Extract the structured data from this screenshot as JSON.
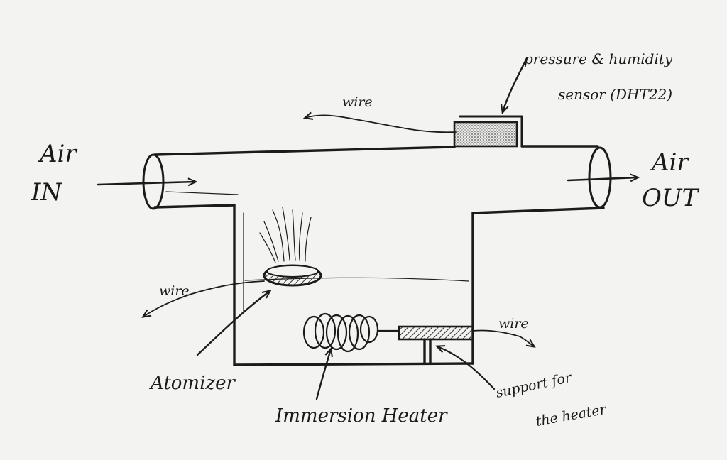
{
  "labels": {
    "air_in_line1": "Air",
    "air_in_line2": "IN",
    "air_out_line1": "Air",
    "air_out_line2": "OUT",
    "sensor_line1": "pressure & humidity",
    "sensor_line2": "sensor (DHT22)",
    "wire_top": "wire",
    "wire_left": "wire",
    "wire_right": "wire",
    "atomizer": "Atomizer",
    "immersion_heater": "Immersion Heater",
    "support_line1": "support for",
    "support_line2": "the heater"
  },
  "colors": {
    "ink": "#1b1b1b",
    "paper": "#f3f3f1"
  }
}
